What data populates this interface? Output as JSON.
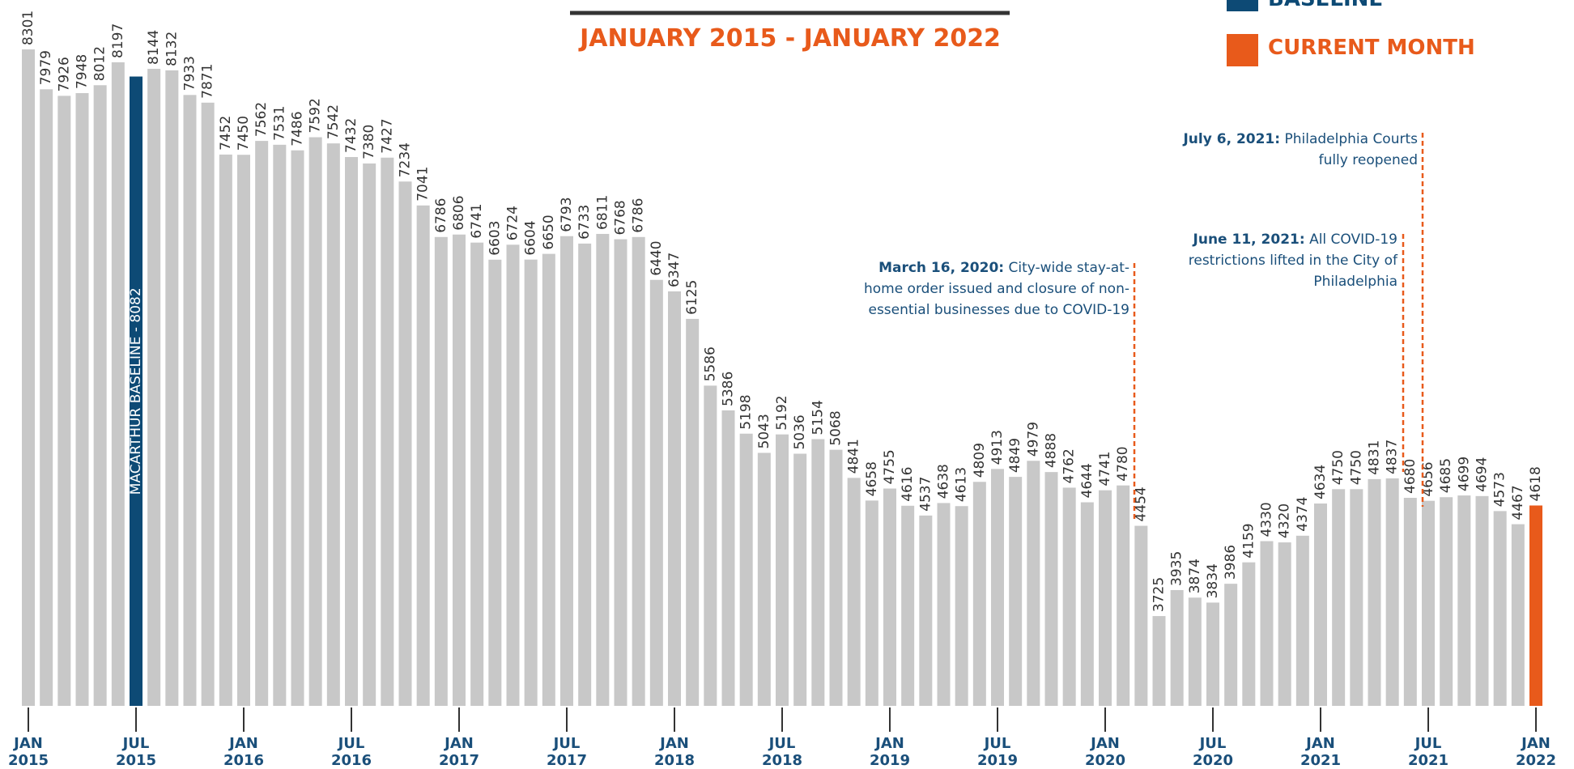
{
  "chart_data": {
    "type": "bar",
    "subtitle": "JANUARY 2015 - JANUARY 2022",
    "categories": [
      "JAN 2015",
      null,
      null,
      null,
      null,
      null,
      "JUL 2015",
      null,
      null,
      null,
      null,
      null,
      "JAN 2016",
      null,
      null,
      null,
      null,
      null,
      "JUL 2016",
      null,
      null,
      null,
      null,
      null,
      "JAN 2017",
      null,
      null,
      null,
      null,
      null,
      "JUL 2017",
      null,
      null,
      null,
      null,
      null,
      "JAN 2018",
      null,
      null,
      null,
      null,
      null,
      "JUL 2018",
      null,
      null,
      null,
      null,
      null,
      "JAN 2019",
      null,
      null,
      null,
      null,
      null,
      "JUL 2019",
      null,
      null,
      null,
      null,
      null,
      "JAN 2020",
      null,
      null,
      null,
      null,
      null,
      "JUL 2020",
      null,
      null,
      null,
      null,
      null,
      "JAN 2021",
      null,
      null,
      null,
      null,
      null,
      "JUL 2021",
      null,
      null,
      null,
      null,
      null,
      "JAN 2022"
    ],
    "values": [
      8301,
      7979,
      7926,
      7948,
      8012,
      8197,
      8082,
      8144,
      8132,
      7933,
      7871,
      7452,
      7450,
      7562,
      7531,
      7486,
      7592,
      7542,
      7432,
      7380,
      7427,
      7234,
      7041,
      6786,
      6806,
      6741,
      6603,
      6724,
      6604,
      6650,
      6793,
      6733,
      6811,
      6768,
      6786,
      6440,
      6347,
      6125,
      5586,
      5386,
      5198,
      5043,
      5192,
      5036,
      5154,
      5068,
      4841,
      4658,
      4755,
      4616,
      4537,
      4638,
      4613,
      4809,
      4913,
      4849,
      4979,
      4888,
      4762,
      4644,
      4741,
      4780,
      4454,
      3725,
      3935,
      3874,
      3834,
      3986,
      4159,
      4330,
      4320,
      4374,
      4634,
      4750,
      4750,
      4831,
      4837,
      4680,
      4656,
      4685,
      4699,
      4694,
      4573,
      4467,
      4618
    ],
    "value_labels": [
      null,
      null,
      null,
      null,
      null,
      null,
      "MACARTHUR BASELINE - 8082",
      null,
      null,
      null,
      null,
      null,
      null,
      null,
      null,
      null,
      null,
      null,
      null,
      null,
      null,
      null,
      null,
      null,
      null,
      null,
      null,
      null,
      null,
      null,
      null,
      null,
      null,
      null,
      null,
      null,
      null,
      null,
      null,
      null,
      null,
      null,
      null,
      null,
      null,
      null,
      null,
      null,
      null,
      null,
      null,
      null,
      null,
      null,
      null,
      null,
      null,
      null,
      null,
      null,
      null,
      null,
      null,
      null,
      null,
      null,
      null,
      null,
      null,
      null,
      null,
      null,
      null,
      null,
      null,
      null,
      null,
      null,
      null,
      null,
      null,
      null,
      null,
      null,
      null
    ],
    "color": "#c8c8c8",
    "legend": [
      {
        "label": "BASELINE",
        "color": "#0d4a75"
      },
      {
        "label": "CURRENT MONTH",
        "color": "#e85a1b"
      }
    ],
    "ylim": [
      3000,
      8700
    ],
    "annotations": [
      {
        "date": "March 16, 2020:",
        "text": "City-wide stay-at-home order issued and closure of non-essential businesses due to COVID-19"
      },
      {
        "date": "June 11, 2021:",
        "text": "All COVID-19 restrictions lifted in the City of Philadelphia"
      },
      {
        "date": "July 6, 2021:",
        "text": "Philadelphia Courts fully reopened"
      }
    ]
  }
}
